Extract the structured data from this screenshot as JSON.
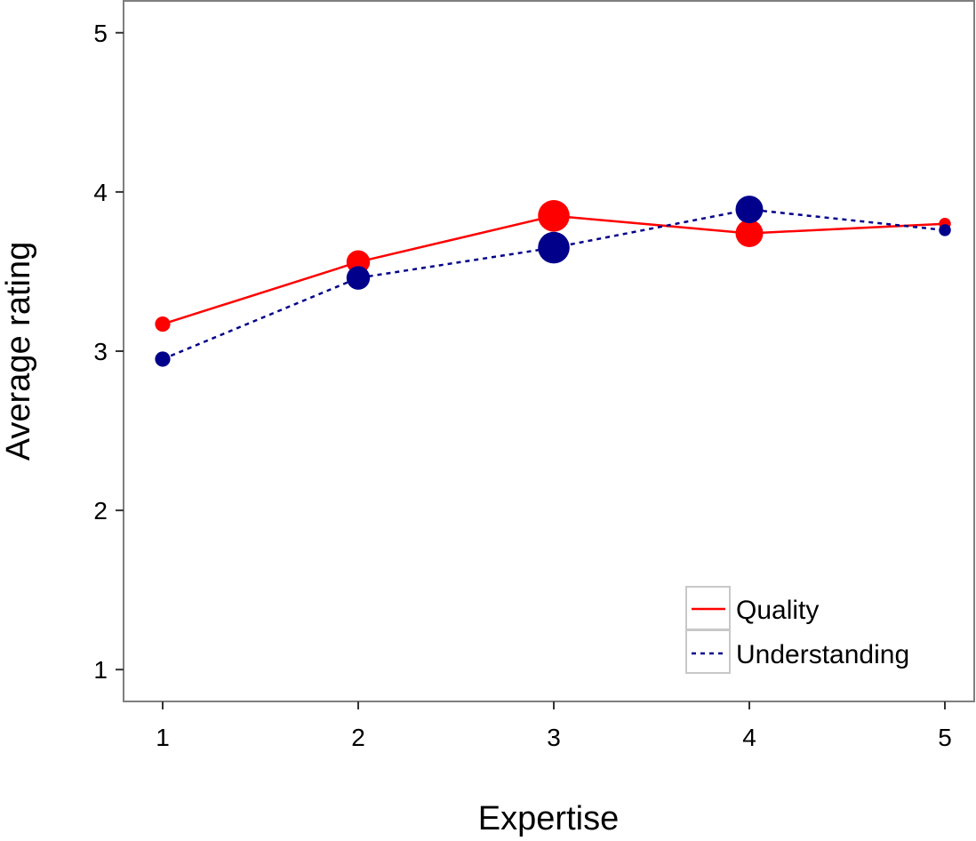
{
  "chart_data": {
    "type": "line",
    "title": "",
    "xlabel": "Expertise",
    "ylabel": "Average rating",
    "x": [
      1,
      2,
      3,
      4,
      5
    ],
    "x_ticks": [
      "1",
      "2",
      "3",
      "4",
      "5"
    ],
    "y_ticks": [
      "1",
      "2",
      "3",
      "4",
      "5"
    ],
    "xlim": [
      0.8,
      5.15
    ],
    "ylim": [
      0.8,
      5.2
    ],
    "grid": false,
    "legend_position": "bottom-right",
    "series": [
      {
        "name": "Quality",
        "values": [
          3.17,
          3.56,
          3.85,
          3.74,
          3.8
        ],
        "point_size": [
          1,
          2,
          3,
          2.5,
          0.6
        ],
        "color": "#ff0000",
        "line_style": "solid"
      },
      {
        "name": "Understanding",
        "values": [
          2.95,
          3.46,
          3.65,
          3.89,
          3.76
        ],
        "point_size": [
          1,
          2,
          3,
          2.5,
          0.6
        ],
        "color": "#00008b",
        "line_style": "dashed"
      }
    ]
  }
}
